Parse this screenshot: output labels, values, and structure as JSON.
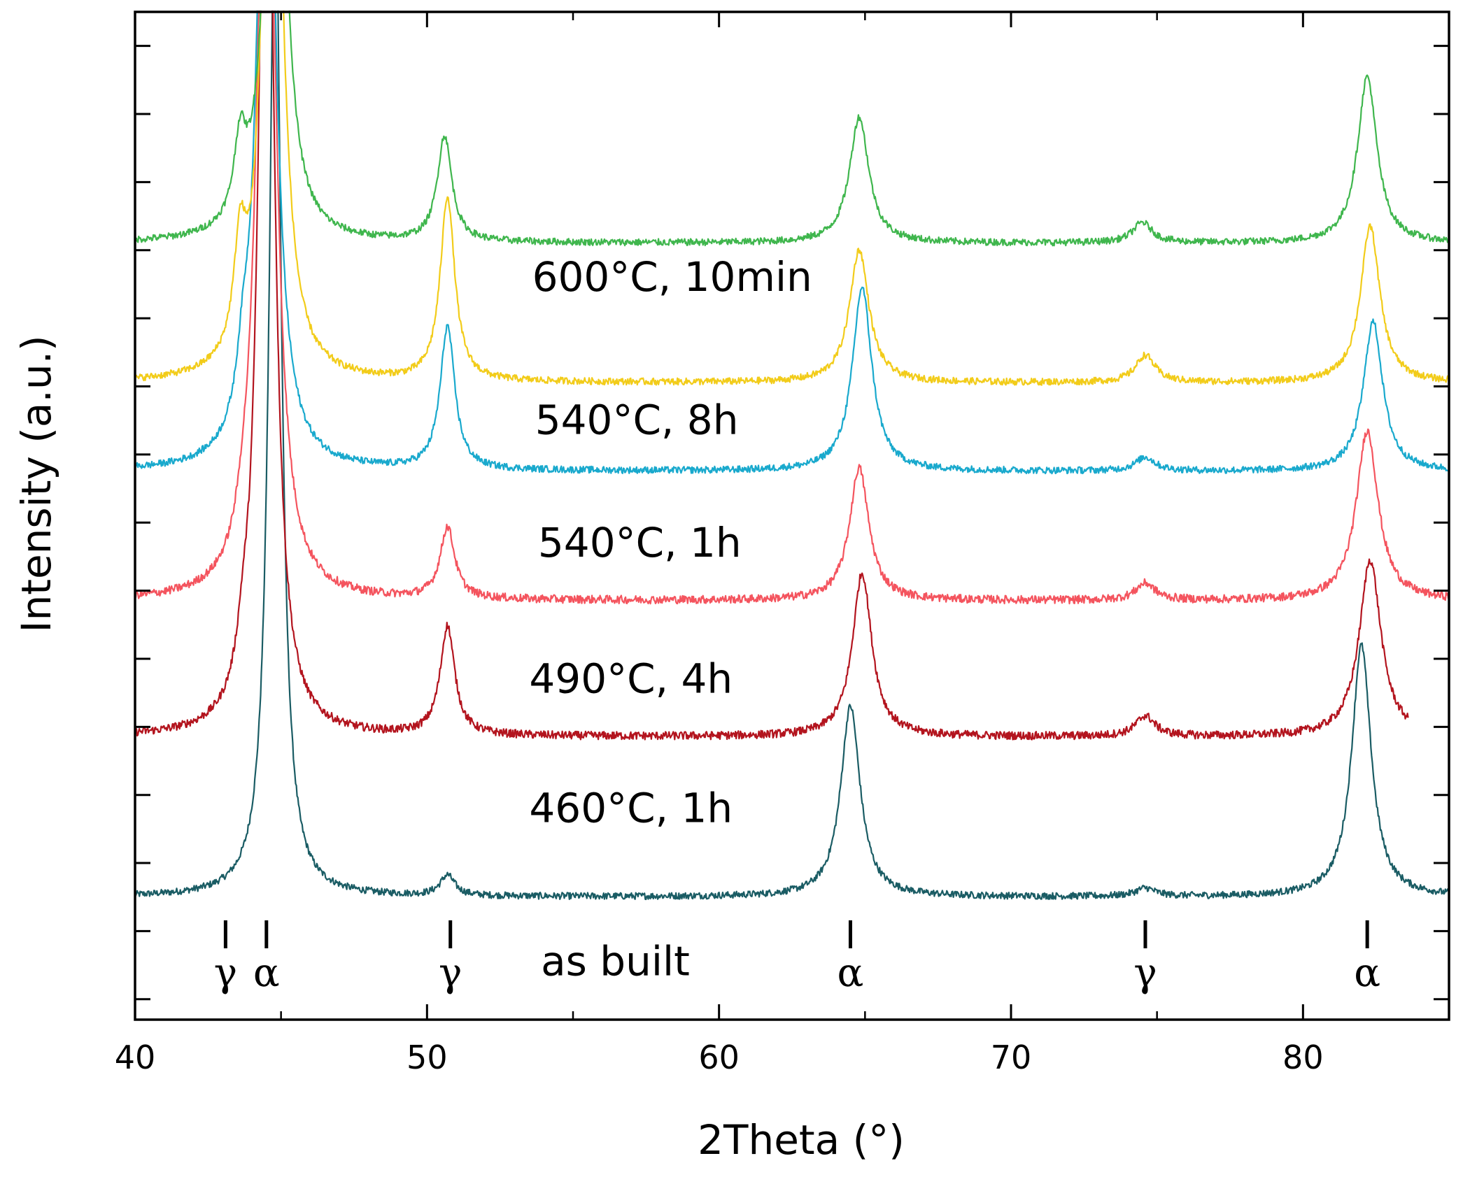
{
  "chart_data": {
    "type": "line",
    "title": "",
    "xlabel": "2Theta (°)",
    "ylabel": "Intensity (a.u.)",
    "xlim": [
      40,
      85
    ],
    "ylim": [
      -0.3,
      14.5
    ],
    "x_ticks": [
      40,
      50,
      60,
      70,
      80
    ],
    "x_tick_labels": [
      "40",
      "50",
      "60",
      "70",
      "80"
    ],
    "y_ticks": [
      0.0,
      1.0,
      2.0,
      3.0,
      4.0,
      5.0,
      6.0,
      7.0,
      8.0,
      9.0,
      10.0,
      11.0,
      12.0,
      13.0,
      14.0
    ],
    "grid": false,
    "series": [
      {
        "name": "as built",
        "color": "#1a5c64",
        "x_range": [
          40,
          85
        ],
        "baseline": 1.5,
        "noise": 0.05,
        "peaks": [
          {
            "center": 44.8,
            "height": 15,
            "width": 0.25
          },
          {
            "center": 50.7,
            "height": 0.3,
            "width": 0.3
          },
          {
            "center": 64.5,
            "height": 2.8,
            "width": 0.4
          },
          {
            "center": 74.6,
            "height": 0.12,
            "width": 0.4
          },
          {
            "center": 82.0,
            "height": 3.7,
            "width": 0.4
          }
        ]
      },
      {
        "name": "460°C, 1h",
        "color": "#b3141e",
        "x_range": [
          40,
          83.6
        ],
        "baseline": 3.85,
        "noise": 0.06,
        "peaks": [
          {
            "center": 43.7,
            "height": 0.55,
            "width": 0.25
          },
          {
            "center": 44.5,
            "height": 16,
            "width": 0.3
          },
          {
            "center": 50.7,
            "height": 1.6,
            "width": 0.3
          },
          {
            "center": 64.9,
            "height": 2.4,
            "width": 0.4
          },
          {
            "center": 74.6,
            "height": 0.3,
            "width": 0.4
          },
          {
            "center": 82.3,
            "height": 2.6,
            "width": 0.45
          }
        ]
      },
      {
        "name": "490°C, 4h",
        "color": "#f4545e",
        "x_range": [
          40,
          85
        ],
        "baseline": 5.85,
        "noise": 0.06,
        "peaks": [
          {
            "center": 43.7,
            "height": 0.3,
            "width": 0.25
          },
          {
            "center": 44.5,
            "height": 14,
            "width": 0.35
          },
          {
            "center": 50.7,
            "height": 1.05,
            "width": 0.3
          },
          {
            "center": 64.8,
            "height": 1.95,
            "width": 0.4
          },
          {
            "center": 74.6,
            "height": 0.25,
            "width": 0.4
          },
          {
            "center": 82.2,
            "height": 2.5,
            "width": 0.45
          }
        ]
      },
      {
        "name": "540°C, 1h",
        "color": "#19a9cd",
        "x_range": [
          40,
          85
        ],
        "baseline": 7.75,
        "noise": 0.05,
        "peaks": [
          {
            "center": 43.7,
            "height": 0.75,
            "width": 0.25
          },
          {
            "center": 44.5,
            "height": 12,
            "width": 0.35
          },
          {
            "center": 50.7,
            "height": 2.1,
            "width": 0.3
          },
          {
            "center": 64.9,
            "height": 2.7,
            "width": 0.4
          },
          {
            "center": 74.6,
            "height": 0.2,
            "width": 0.4
          },
          {
            "center": 82.4,
            "height": 2.2,
            "width": 0.4
          }
        ]
      },
      {
        "name": "540°C, 8h",
        "color": "#f2cc1a",
        "x_range": [
          40,
          85
        ],
        "baseline": 9.05,
        "noise": 0.05,
        "peaks": [
          {
            "center": 43.6,
            "height": 1.5,
            "width": 0.25
          },
          {
            "center": 44.7,
            "height": 12,
            "width": 0.35
          },
          {
            "center": 50.7,
            "height": 2.7,
            "width": 0.3
          },
          {
            "center": 64.8,
            "height": 1.95,
            "width": 0.4
          },
          {
            "center": 74.6,
            "height": 0.4,
            "width": 0.4
          },
          {
            "center": 82.3,
            "height": 2.3,
            "width": 0.4
          }
        ]
      },
      {
        "name": "600°C, 10min",
        "color": "#3fb64d",
        "x_range": [
          40,
          85
        ],
        "baseline": 11.1,
        "noise": 0.05,
        "peaks": [
          {
            "center": 43.6,
            "height": 1.1,
            "width": 0.25
          },
          {
            "center": 44.8,
            "height": 10,
            "width": 0.35
          },
          {
            "center": 50.6,
            "height": 1.55,
            "width": 0.3
          },
          {
            "center": 64.8,
            "height": 1.85,
            "width": 0.4
          },
          {
            "center": 74.5,
            "height": 0.3,
            "width": 0.4
          },
          {
            "center": 82.2,
            "height": 2.45,
            "width": 0.4
          }
        ]
      }
    ],
    "curve_labels": [
      {
        "text": "600°C, 10min",
        "x": 53.6,
        "y": 10.4
      },
      {
        "text": "540°C, 8h",
        "x": 53.7,
        "y": 8.3
      },
      {
        "text": "540°C, 1h",
        "x": 53.8,
        "y": 6.5
      },
      {
        "text": "490°C, 4h",
        "x": 53.5,
        "y": 4.5
      },
      {
        "text": "460°C, 1h",
        "x": 53.5,
        "y": 2.6
      },
      {
        "text": "as built",
        "x": 53.9,
        "y": 0.35
      }
    ],
    "phase_markers": [
      {
        "label": "γ",
        "x": 43.1
      },
      {
        "label": "α",
        "x": 44.5
      },
      {
        "label": "γ",
        "x": 50.8
      },
      {
        "label": "α",
        "x": 64.5
      },
      {
        "label": "γ",
        "x": 74.6
      },
      {
        "label": "α",
        "x": 82.2
      }
    ]
  }
}
